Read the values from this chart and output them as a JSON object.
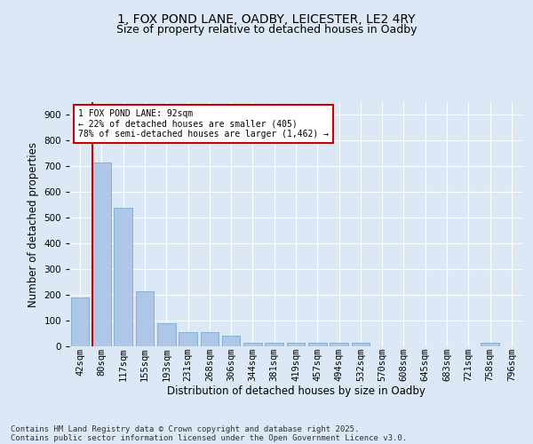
{
  "title_line1": "1, FOX POND LANE, OADBY, LEICESTER, LE2 4RY",
  "title_line2": "Size of property relative to detached houses in Oadby",
  "xlabel": "Distribution of detached houses by size in Oadby",
  "ylabel": "Number of detached properties",
  "categories": [
    "42sqm",
    "80sqm",
    "117sqm",
    "155sqm",
    "193sqm",
    "231sqm",
    "268sqm",
    "306sqm",
    "344sqm",
    "381sqm",
    "419sqm",
    "457sqm",
    "494sqm",
    "532sqm",
    "570sqm",
    "608sqm",
    "645sqm",
    "683sqm",
    "721sqm",
    "758sqm",
    "796sqm"
  ],
  "values": [
    190,
    715,
    540,
    215,
    90,
    55,
    55,
    40,
    15,
    15,
    15,
    15,
    15,
    15,
    0,
    0,
    0,
    0,
    0,
    15,
    0
  ],
  "bar_color": "#aec6e8",
  "bar_edge_color": "#7aaacc",
  "vline_color": "#cc0000",
  "vline_x_index": 1,
  "annotation_text": "1 FOX POND LANE: 92sqm\n← 22% of detached houses are smaller (405)\n78% of semi-detached houses are larger (1,462) →",
  "annotation_box_facecolor": "#ffffff",
  "annotation_box_edgecolor": "#cc0000",
  "ylim": [
    0,
    950
  ],
  "yticks": [
    0,
    100,
    200,
    300,
    400,
    500,
    600,
    700,
    800,
    900
  ],
  "footer_line1": "Contains HM Land Registry data © Crown copyright and database right 2025.",
  "footer_line2": "Contains public sector information licensed under the Open Government Licence v3.0.",
  "background_color": "#dce8f5",
  "plot_background_color": "#dce8f5",
  "grid_color": "#ffffff",
  "title_fontsize": 10,
  "subtitle_fontsize": 9,
  "axis_label_fontsize": 8.5,
  "tick_fontsize": 7.5,
  "annotation_fontsize": 7,
  "footer_fontsize": 6.5
}
